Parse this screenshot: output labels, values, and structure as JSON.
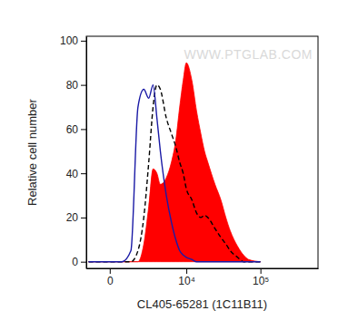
{
  "chart_data": {
    "type": "line",
    "x_label": "CL405-65281 (1C11B11)",
    "y_label": "Relative cell number",
    "annotations": [
      "WWW.PTGLAB.COM"
    ],
    "log": "x",
    "xlim": [
      -1150,
      560000
    ],
    "xticks": [
      0,
      {
        "value": 10000,
        "label": "10⁴"
      },
      {
        "value": 100000,
        "label": "10⁵"
      }
    ],
    "ylim": [
      -3,
      102
    ],
    "yticks": [
      0,
      20,
      40,
      60,
      80,
      100
    ],
    "grid": false,
    "x": [
      -1000,
      0,
      500,
      1000,
      1500,
      2000,
      2500,
      3000,
      3500,
      4000,
      5000,
      6000,
      7000,
      8000,
      9000,
      10000,
      12000,
      14000,
      16000,
      18000,
      20000,
      25000,
      30000,
      35000,
      40000,
      50000,
      60000,
      70000,
      100000
    ],
    "series": [
      {
        "type": "area",
        "color": "#ff0000",
        "line_style": "solid",
        "values": [
          0,
          0,
          0,
          0,
          0,
          8,
          25,
          42,
          40,
          35,
          38,
          45,
          55,
          70,
          82,
          90,
          82,
          68,
          58,
          50,
          45,
          35,
          28,
          20,
          14,
          7,
          3,
          1,
          0
        ]
      },
      {
        "type": "line",
        "color": "#000000",
        "line_style": "dashed",
        "values": [
          0,
          0,
          0,
          0,
          5,
          20,
          45,
          70,
          80,
          78,
          65,
          58,
          52,
          45,
          40,
          33,
          28,
          22,
          20,
          21,
          20,
          15,
          11,
          8,
          5,
          2,
          0,
          0,
          0
        ]
      },
      {
        "type": "line",
        "color": "#1a1aa6",
        "line_style": "solid",
        "values": [
          0,
          0,
          0,
          5,
          70,
          78,
          74,
          80,
          65,
          50,
          30,
          18,
          10,
          5,
          3,
          2,
          1,
          0,
          0,
          0,
          0,
          0,
          0,
          0,
          0,
          0,
          0,
          0,
          0
        ]
      }
    ]
  }
}
